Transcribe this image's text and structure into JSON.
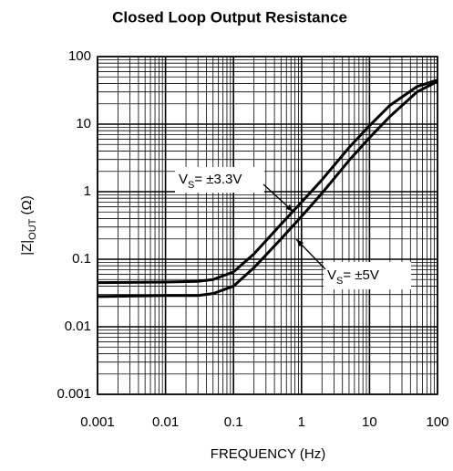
{
  "chart_data": {
    "type": "line",
    "title": "Closed Loop Output Resistance",
    "xlabel": "FREQUENCY (Hz)",
    "ylabel": {
      "main": "|Z|",
      "sub": "OUT",
      "rest": " (Ω)"
    },
    "x": [
      0.001,
      0.01,
      0.03,
      0.05,
      0.1,
      0.2,
      0.5,
      1,
      2,
      5,
      10,
      20,
      50,
      100
    ],
    "series": [
      {
        "label": {
          "main": "V",
          "sub": "S",
          "rest": "= ±3.3V"
        },
        "color": "#000000",
        "values": [
          0.045,
          0.046,
          0.047,
          0.05,
          0.065,
          0.12,
          0.33,
          0.7,
          1.5,
          4.5,
          9.5,
          19,
          36,
          45
        ]
      },
      {
        "label": {
          "main": "V",
          "sub": "S",
          "rest": "= ±5V"
        },
        "color": "#000000",
        "values": [
          0.028,
          0.029,
          0.029,
          0.031,
          0.04,
          0.075,
          0.2,
          0.43,
          0.95,
          2.9,
          6.3,
          13,
          30,
          43
        ]
      }
    ],
    "xlim": [
      0.001,
      100
    ],
    "ylim": [
      0.001,
      100
    ],
    "xticks": [
      0.001,
      0.01,
      0.1,
      1,
      10,
      100
    ],
    "yticks": [
      0.001,
      0.01,
      0.1,
      1,
      10,
      100
    ],
    "xscale": "log",
    "yscale": "log",
    "grid": true,
    "minor_grid": true
  }
}
